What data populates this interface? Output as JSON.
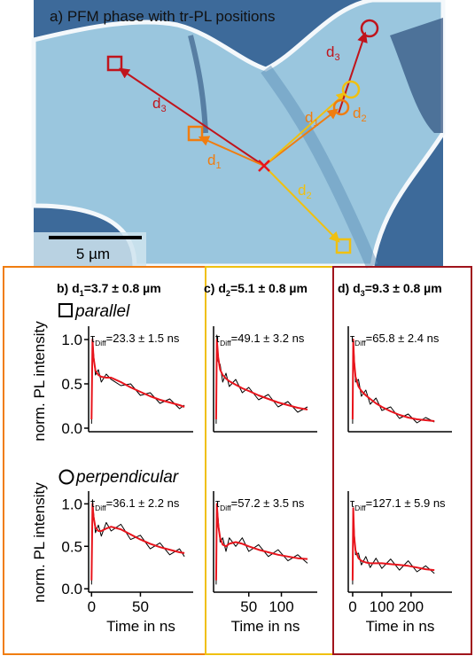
{
  "panel_a": {
    "title": "a) PFM phase with tr-PL positions",
    "labels": [
      {
        "main": "d",
        "sub": "3"
      },
      {
        "main": "d",
        "sub": "1"
      },
      {
        "main": "d",
        "sub": "2"
      },
      {
        "main": "d",
        "sub": "1"
      },
      {
        "main": "d",
        "sub": "2"
      },
      {
        "main": "d",
        "sub": "3"
      }
    ],
    "scale_bar": "5 µm"
  },
  "column_titles": [
    {
      "prefix": "b) d",
      "sub": "1",
      "suffix": "=3.7 ± 0.8 µm"
    },
    {
      "prefix": "c) d",
      "sub": "2",
      "suffix": "=5.1 ± 0.8 µm"
    },
    {
      "prefix": "d) d",
      "sub": "3",
      "suffix": "=9.3 ± 0.8 µm"
    }
  ],
  "row_labels": [
    "parallel",
    "perpendicular"
  ],
  "y_label": "norm. PL intensity",
  "chart_data": [
    {
      "type": "line",
      "annotation": {
        "symbol": "τ",
        "sub": "Diff",
        "text": "=23.3 ± 1.5 ns"
      },
      "x": [
        0,
        1,
        2,
        4,
        7,
        10,
        15,
        20,
        30,
        40,
        50,
        60,
        70,
        80,
        90,
        95
      ],
      "series": [
        {
          "color": "#000000",
          "values": [
            0.05,
            1.02,
            0.85,
            0.6,
            0.66,
            0.52,
            0.61,
            0.55,
            0.48,
            0.5,
            0.37,
            0.4,
            0.28,
            0.33,
            0.22,
            0.26
          ]
        },
        {
          "color": "#e8141c",
          "values": [
            0.1,
            1.0,
            0.8,
            0.65,
            0.6,
            0.58,
            0.57,
            0.57,
            0.52,
            0.46,
            0.41,
            0.36,
            0.32,
            0.29,
            0.26,
            0.24
          ]
        }
      ],
      "xlim": [
        -3,
        104
      ],
      "ylim": [
        -0.04,
        1.15
      ],
      "yticks": [
        {
          "value": 0,
          "label": "0.0"
        },
        {
          "value": 0.5,
          "label": "0.5"
        },
        {
          "value": 1,
          "label": "1.0"
        }
      ]
    },
    {
      "type": "line",
      "annotation": {
        "symbol": "τ",
        "sub": "Diff",
        "text": "=36.1 ± 2.2 ns"
      },
      "x": [
        0,
        1,
        2,
        4,
        7,
        10,
        15,
        20,
        30,
        40,
        50,
        60,
        70,
        80,
        90,
        95
      ],
      "series": [
        {
          "color": "#000000",
          "values": [
            0.05,
            1.05,
            0.9,
            0.66,
            0.75,
            0.62,
            0.78,
            0.68,
            0.76,
            0.58,
            0.63,
            0.47,
            0.54,
            0.4,
            0.47,
            0.38
          ]
        },
        {
          "color": "#e8141c",
          "values": [
            0.1,
            1.0,
            0.85,
            0.72,
            0.68,
            0.68,
            0.71,
            0.73,
            0.7,
            0.64,
            0.58,
            0.53,
            0.49,
            0.46,
            0.43,
            0.42
          ]
        }
      ],
      "xlim": [
        -3,
        104
      ],
      "ylim": [
        -0.04,
        1.15
      ],
      "xticks": [
        0,
        50
      ],
      "xlabel": "Time in ns",
      "yticks": [
        {
          "value": 0,
          "label": "0.0"
        },
        {
          "value": 0.5,
          "label": "0.5"
        },
        {
          "value": 1,
          "label": "1.0"
        }
      ]
    },
    {
      "type": "line",
      "annotation": {
        "symbol": "τ",
        "sub": "Diff",
        "text": "=49.1 ± 3.2 ns"
      },
      "x": [
        0,
        1,
        3,
        6,
        10,
        15,
        20,
        30,
        40,
        50,
        65,
        80,
        95,
        110,
        125,
        140
      ],
      "series": [
        {
          "color": "#000000",
          "values": [
            0.05,
            1.05,
            0.75,
            0.72,
            0.52,
            0.62,
            0.47,
            0.55,
            0.4,
            0.46,
            0.32,
            0.38,
            0.24,
            0.3,
            0.18,
            0.24
          ]
        },
        {
          "color": "#e8141c",
          "values": [
            0.1,
            1.0,
            0.8,
            0.66,
            0.6,
            0.56,
            0.53,
            0.49,
            0.45,
            0.42,
            0.37,
            0.33,
            0.29,
            0.26,
            0.23,
            0.21
          ]
        }
      ],
      "xlim": [
        -4,
        155
      ],
      "ylim": [
        -0.04,
        1.15
      ]
    },
    {
      "type": "line",
      "annotation": {
        "symbol": "τ",
        "sub": "Diff",
        "text": "=57.2 ± 3.5 ns"
      },
      "x": [
        0,
        1,
        3,
        6,
        10,
        15,
        20,
        30,
        40,
        50,
        65,
        80,
        95,
        110,
        125,
        140
      ],
      "series": [
        {
          "color": "#000000",
          "values": [
            0.05,
            1.0,
            0.82,
            0.55,
            0.6,
            0.44,
            0.6,
            0.5,
            0.6,
            0.44,
            0.52,
            0.38,
            0.46,
            0.33,
            0.4,
            0.3
          ]
        },
        {
          "color": "#e8141c",
          "values": [
            0.1,
            1.0,
            0.75,
            0.6,
            0.52,
            0.5,
            0.53,
            0.55,
            0.53,
            0.5,
            0.46,
            0.43,
            0.4,
            0.38,
            0.36,
            0.35
          ]
        }
      ],
      "xlim": [
        -4,
        155
      ],
      "ylim": [
        -0.04,
        1.15
      ],
      "xticks": [
        50,
        100
      ],
      "xlabel": "Time in ns"
    },
    {
      "type": "line",
      "annotation": {
        "symbol": "τ",
        "sub": "Diff",
        "text": "=65.8 ± 2.4 ns"
      },
      "x": [
        0,
        2,
        5,
        10,
        20,
        30,
        45,
        60,
        80,
        100,
        130,
        160,
        190,
        220,
        250,
        280
      ],
      "series": [
        {
          "color": "#000000",
          "values": [
            0.05,
            1.0,
            0.82,
            0.52,
            0.55,
            0.36,
            0.43,
            0.27,
            0.34,
            0.2,
            0.24,
            0.11,
            0.16,
            0.06,
            0.12,
            0.07
          ]
        },
        {
          "color": "#e8141c",
          "values": [
            0.1,
            1.0,
            0.75,
            0.58,
            0.47,
            0.42,
            0.37,
            0.33,
            0.28,
            0.24,
            0.19,
            0.15,
            0.12,
            0.1,
            0.09,
            0.08
          ]
        }
      ],
      "xlim": [
        -15,
        340
      ],
      "ylim": [
        -0.04,
        1.15
      ]
    },
    {
      "type": "line",
      "annotation": {
        "symbol": "τ",
        "sub": "Diff",
        "text": "=127.1 ± 5.9 ns"
      },
      "x": [
        0,
        2,
        5,
        10,
        20,
        30,
        45,
        60,
        80,
        100,
        130,
        160,
        190,
        220,
        250,
        280
      ],
      "series": [
        {
          "color": "#000000",
          "values": [
            0.05,
            0.9,
            0.7,
            0.4,
            0.42,
            0.28,
            0.38,
            0.25,
            0.36,
            0.24,
            0.35,
            0.22,
            0.33,
            0.2,
            0.27,
            0.18
          ]
        },
        {
          "color": "#e8141c",
          "values": [
            0.1,
            0.95,
            0.62,
            0.45,
            0.36,
            0.33,
            0.31,
            0.3,
            0.3,
            0.3,
            0.29,
            0.28,
            0.27,
            0.25,
            0.23,
            0.22
          ]
        }
      ],
      "xlim": [
        -15,
        340
      ],
      "ylim": [
        -0.04,
        1.15
      ],
      "xticks": [
        0,
        100,
        200
      ],
      "xlabel": "Time in ns"
    }
  ]
}
